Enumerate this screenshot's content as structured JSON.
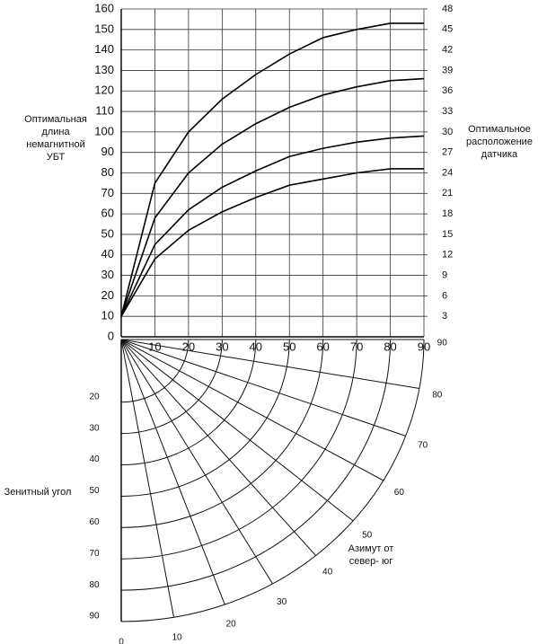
{
  "chart_data": [
    {
      "type": "line",
      "x": [
        0,
        10,
        20,
        30,
        40,
        50,
        60,
        70,
        80,
        90
      ],
      "series": [
        {
          "color": "#000000",
          "values": [
            10,
            75,
            100,
            116,
            128,
            138,
            146,
            150,
            153,
            153
          ]
        },
        {
          "color": "#000000",
          "values": [
            10,
            58,
            80,
            94,
            104,
            112,
            118,
            122,
            125,
            126
          ]
        },
        {
          "color": "#000000",
          "values": [
            10,
            45,
            62,
            73,
            81,
            88,
            92,
            95,
            97,
            98
          ]
        },
        {
          "color": "#000000",
          "values": [
            10,
            38,
            52,
            61,
            68,
            74,
            77,
            80,
            82,
            82
          ]
        }
      ],
      "xlim": [
        0,
        90
      ],
      "xticks": [
        10,
        20,
        30,
        40,
        50,
        60,
        70,
        80,
        90
      ],
      "ylim": [
        0,
        160
      ],
      "yticks": [
        0,
        10,
        20,
        30,
        40,
        50,
        60,
        70,
        80,
        90,
        100,
        110,
        120,
        130,
        140,
        150,
        160
      ],
      "y2lim": [
        0,
        48
      ],
      "y2ticks": [
        3,
        6,
        9,
        12,
        15,
        18,
        21,
        24,
        27,
        30,
        33,
        36,
        39,
        42,
        45,
        48
      ],
      "ylabel": [
        "Оптимальная",
        "длина",
        "немагнитной",
        "УБТ"
      ],
      "y2label": [
        "Оптимальное",
        "расположение",
        "датчика"
      ],
      "grid": true
    },
    {
      "type": "polar",
      "rlim": [
        0,
        90
      ],
      "rticks": [
        20,
        30,
        40,
        50,
        60,
        70,
        80,
        90
      ],
      "alim": [
        0,
        90
      ],
      "aticks": [
        0,
        10,
        20,
        30,
        40,
        50,
        60,
        70,
        80,
        90
      ],
      "rlabel": "Зенитный угол",
      "alabel": [
        "Азимут от",
        "север- юг"
      ]
    }
  ]
}
